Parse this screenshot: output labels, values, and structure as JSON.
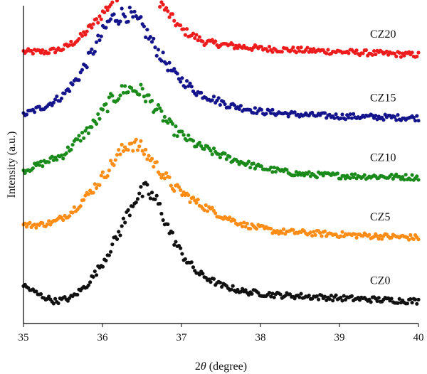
{
  "chart_data": {
    "type": "scatter",
    "title": "",
    "xlabel_prefix": "2",
    "xlabel_symbol": "θ",
    "xlabel_suffix": " (degree)",
    "ylabel": "Intensity (a.u.)",
    "xlim": [
      35,
      40
    ],
    "x_ticks": [
      "35",
      "36",
      "37",
      "38",
      "39",
      "40"
    ],
    "y_ticks_shown": false,
    "grid": false,
    "legend": "none",
    "series": [
      {
        "name": "CZ20",
        "color": "#ee1c1c",
        "baseline": 0.855,
        "profile": [
          [
            35.0,
            0.0
          ],
          [
            35.3,
            0.0
          ],
          [
            35.5,
            0.01
          ],
          [
            35.7,
            0.04
          ],
          [
            35.9,
            0.09
          ],
          [
            36.1,
            0.15
          ],
          [
            36.3,
            0.22
          ],
          [
            36.45,
            0.25
          ],
          [
            36.6,
            0.21
          ],
          [
            36.8,
            0.13
          ],
          [
            37.0,
            0.07
          ],
          [
            37.3,
            0.03
          ],
          [
            37.6,
            0.02
          ],
          [
            38.0,
            0.01
          ],
          [
            39.0,
            0.0
          ],
          [
            40.0,
            -0.01
          ]
        ]
      },
      {
        "name": "CZ15",
        "color": "#14148c",
        "baseline": 0.657,
        "profile": [
          [
            35.0,
            0.0
          ],
          [
            35.3,
            0.03
          ],
          [
            35.5,
            0.06
          ],
          [
            35.7,
            0.12
          ],
          [
            35.9,
            0.21
          ],
          [
            36.1,
            0.3
          ],
          [
            36.3,
            0.32
          ],
          [
            36.5,
            0.28
          ],
          [
            36.7,
            0.2
          ],
          [
            36.9,
            0.13
          ],
          [
            37.2,
            0.07
          ],
          [
            37.6,
            0.03
          ],
          [
            38.0,
            0.01
          ],
          [
            38.5,
            0.0
          ],
          [
            39.0,
            -0.005
          ],
          [
            40.0,
            -0.01
          ]
        ]
      },
      {
        "name": "CZ10",
        "color": "#1a8a1a",
        "baseline": 0.48,
        "profile": [
          [
            35.0,
            0.0
          ],
          [
            35.3,
            0.03
          ],
          [
            35.5,
            0.05
          ],
          [
            35.7,
            0.1
          ],
          [
            35.9,
            0.15
          ],
          [
            36.1,
            0.22
          ],
          [
            36.3,
            0.26
          ],
          [
            36.5,
            0.25
          ],
          [
            36.7,
            0.19
          ],
          [
            36.9,
            0.13
          ],
          [
            37.2,
            0.08
          ],
          [
            37.6,
            0.04
          ],
          [
            38.0,
            0.01
          ],
          [
            38.5,
            -0.01
          ],
          [
            39.0,
            -0.015
          ],
          [
            40.0,
            -0.02
          ]
        ]
      },
      {
        "name": "CZ5",
        "color": "#ff8c14",
        "baseline": 0.31,
        "profile": [
          [
            35.0,
            0.0
          ],
          [
            35.2,
            0.0
          ],
          [
            35.4,
            0.01
          ],
          [
            35.6,
            0.04
          ],
          [
            35.8,
            0.09
          ],
          [
            36.0,
            0.15
          ],
          [
            36.2,
            0.22
          ],
          [
            36.35,
            0.26
          ],
          [
            36.5,
            0.24
          ],
          [
            36.7,
            0.18
          ],
          [
            36.9,
            0.12
          ],
          [
            37.2,
            0.07
          ],
          [
            37.5,
            0.03
          ],
          [
            37.8,
            0.0
          ],
          [
            38.2,
            -0.02
          ],
          [
            39.0,
            -0.03
          ],
          [
            40.0,
            -0.04
          ]
        ]
      },
      {
        "name": "CZ0",
        "color": "#111111",
        "baseline": 0.12,
        "profile": [
          [
            35.0,
            0.0
          ],
          [
            35.2,
            -0.03
          ],
          [
            35.4,
            -0.05
          ],
          [
            35.6,
            -0.04
          ],
          [
            35.8,
            0.0
          ],
          [
            36.0,
            0.07
          ],
          [
            36.2,
            0.16
          ],
          [
            36.4,
            0.27
          ],
          [
            36.55,
            0.3
          ],
          [
            36.7,
            0.26
          ],
          [
            36.85,
            0.17
          ],
          [
            37.0,
            0.1
          ],
          [
            37.2,
            0.04
          ],
          [
            37.5,
            0.0
          ],
          [
            37.8,
            -0.02
          ],
          [
            38.2,
            -0.03
          ],
          [
            39.0,
            -0.04
          ],
          [
            40.0,
            -0.05
          ]
        ]
      }
    ]
  }
}
